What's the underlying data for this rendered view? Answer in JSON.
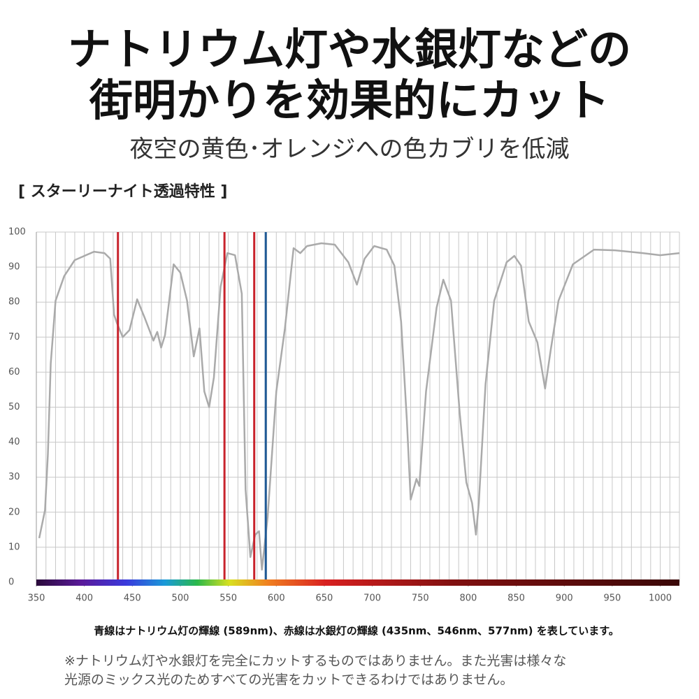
{
  "chart_data": {
    "type": "line",
    "title": [
      "ナトリウム灯や水銀灯などの",
      "街明かりを効果的にカット"
    ],
    "subtitle": "夜空の黄色･オレンジへの色カブリを低減",
    "chart_label": "[ スターリーナイト透過特性 ]",
    "caption": "青線はナトリウム灯の輝線 (589nm)、赤線は水銀灯の輝線 (435nm、546nm、577nm) を表しています。",
    "note": [
      "※ナトリウム灯や水銀灯を完全にカットするものではありません。また光害は様々な",
      "光源のミックス光のためすべての光害をカットできるわけではありません。"
    ],
    "xlim": [
      350,
      1020
    ],
    "ylim": [
      0,
      100
    ],
    "xticks": [
      350,
      400,
      450,
      500,
      550,
      600,
      650,
      700,
      750,
      800,
      850,
      900,
      950,
      1000
    ],
    "yticks": [
      0,
      10,
      20,
      30,
      40,
      50,
      60,
      70,
      80,
      90,
      100
    ],
    "xgrid": [
      360,
      370,
      380,
      390,
      400,
      410,
      420,
      430,
      440,
      450,
      460,
      470,
      480,
      490,
      500,
      510,
      520,
      530,
      540,
      550,
      560,
      570,
      580,
      590,
      600,
      610,
      620,
      630,
      640,
      650,
      660,
      670,
      680,
      690,
      700,
      710,
      720,
      730,
      740,
      750,
      760,
      770,
      780,
      790,
      800,
      810,
      820,
      830,
      840,
      850,
      860,
      870,
      880,
      890,
      900,
      910,
      920,
      930,
      940,
      950,
      960,
      970,
      980,
      990,
      1000,
      1010,
      1020
    ],
    "grid": true,
    "vlines": [
      {
        "x": 435,
        "color": "#c8232c"
      },
      {
        "x": 546,
        "color": "#c8232c"
      },
      {
        "x": 577,
        "color": "#c8232c"
      },
      {
        "x": 589,
        "color": "#1f5a96"
      }
    ],
    "series": [
      {
        "color": "#aaaaaa",
        "x": [
          353,
          359,
          362,
          365,
          370,
          379,
          390,
          410,
          421,
          427,
          431,
          434,
          440,
          447,
          455,
          463,
          472,
          476,
          480,
          484,
          493,
          500,
          507,
          514,
          520,
          525,
          530,
          535,
          542,
          549,
          557,
          564,
          568,
          573,
          578,
          582,
          585,
          591,
          600,
          609,
          618,
          625,
          632,
          647,
          661,
          675,
          684,
          692,
          702,
          715,
          723,
          730,
          736,
          740,
          746,
          749,
          756,
          767,
          774,
          782,
          791,
          798,
          804,
          808,
          811,
          818,
          827,
          840,
          848,
          855,
          863,
          872,
          880,
          886,
          894,
          909,
          931,
          953,
          982,
          1000,
          1020
        ],
        "values": [
          12.6,
          20.6,
          36.5,
          62.5,
          80.4,
          87.4,
          92,
          94.4,
          94,
          92.4,
          76.4,
          74,
          70,
          72,
          80.8,
          75.4,
          69,
          71.5,
          67,
          70.5,
          90.8,
          88.4,
          80.4,
          64.5,
          72.5,
          54.5,
          50,
          58.5,
          84.4,
          94,
          93.4,
          82.4,
          26.5,
          7.2,
          13.6,
          14.6,
          3.6,
          18.6,
          54.5,
          72.5,
          95.4,
          94,
          96,
          96.8,
          96.4,
          91.4,
          85,
          92.4,
          96,
          95,
          90.4,
          74.5,
          46.5,
          23.6,
          29.5,
          27.5,
          54.5,
          78.4,
          86.4,
          80.4,
          48.5,
          28.5,
          22.6,
          13.6,
          22.6,
          56.5,
          80.4,
          91.4,
          93.2,
          90.4,
          74.5,
          68.5,
          55.3,
          66.5,
          80.4,
          90.8,
          95,
          94.8,
          94,
          93.4,
          94
        ]
      }
    ]
  }
}
